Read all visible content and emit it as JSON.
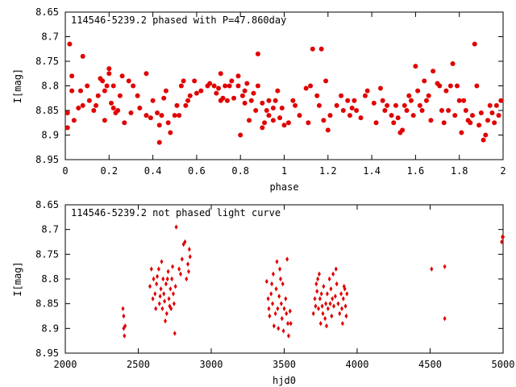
{
  "chart_data": [
    {
      "type": "scatter",
      "title": "114546-5239.2 phased with P=47.860day",
      "xlabel": "phase",
      "ylabel": "I[mag]",
      "xlim": [
        0,
        2
      ],
      "ylim": [
        8.95,
        8.65
      ],
      "y_inverted": true,
      "xticks": [
        "0",
        "0.2",
        "0.4",
        "0.6",
        "0.8",
        "1",
        "1.2",
        "1.4",
        "1.6",
        "1.8",
        "2"
      ],
      "xtick_values": [
        0,
        0.2,
        0.4,
        0.6,
        0.8,
        1.0,
        1.2,
        1.4,
        1.6,
        1.8,
        2.0
      ],
      "yticks": [
        "8.65",
        "8.7",
        "8.75",
        "8.8",
        "8.85",
        "8.9",
        "8.95"
      ],
      "ytick_values": [
        8.65,
        8.7,
        8.75,
        8.8,
        8.85,
        8.9,
        8.95
      ],
      "marker_color": "#e00000",
      "marker": "filled-circle",
      "grid": false,
      "points": [
        [
          0.01,
          8.885
        ],
        [
          0.01,
          8.855
        ],
        [
          0.02,
          8.715
        ],
        [
          0.03,
          8.78
        ],
        [
          0.03,
          8.81
        ],
        [
          0.04,
          8.87
        ],
        [
          0.06,
          8.845
        ],
        [
          0.07,
          8.81
        ],
        [
          0.08,
          8.84
        ],
        [
          0.08,
          8.74
        ],
        [
          0.1,
          8.8
        ],
        [
          0.11,
          8.83
        ],
        [
          0.13,
          8.85
        ],
        [
          0.14,
          8.84
        ],
        [
          0.15,
          8.82
        ],
        [
          0.16,
          8.785
        ],
        [
          0.17,
          8.79
        ],
        [
          0.18,
          8.81
        ],
        [
          0.18,
          8.87
        ],
        [
          0.19,
          8.8
        ],
        [
          0.2,
          8.765
        ],
        [
          0.2,
          8.775
        ],
        [
          0.21,
          8.835
        ],
        [
          0.22,
          8.8
        ],
        [
          0.22,
          8.845
        ],
        [
          0.23,
          8.855
        ],
        [
          0.24,
          8.85
        ],
        [
          0.25,
          8.82
        ],
        [
          0.26,
          8.78
        ],
        [
          0.27,
          8.875
        ],
        [
          0.29,
          8.79
        ],
        [
          0.3,
          8.855
        ],
        [
          0.31,
          8.8
        ],
        [
          0.33,
          8.82
        ],
        [
          0.34,
          8.845
        ],
        [
          0.37,
          8.86
        ],
        [
          0.37,
          8.775
        ],
        [
          0.39,
          8.865
        ],
        [
          0.4,
          8.83
        ],
        [
          0.42,
          8.855
        ],
        [
          0.43,
          8.915
        ],
        [
          0.43,
          8.88
        ],
        [
          0.44,
          8.86
        ],
        [
          0.45,
          8.825
        ],
        [
          0.46,
          8.81
        ],
        [
          0.47,
          8.875
        ],
        [
          0.48,
          8.895
        ],
        [
          0.5,
          8.86
        ],
        [
          0.51,
          8.84
        ],
        [
          0.52,
          8.86
        ],
        [
          0.53,
          8.8
        ],
        [
          0.54,
          8.79
        ],
        [
          0.55,
          8.84
        ],
        [
          0.56,
          8.83
        ],
        [
          0.57,
          8.82
        ],
        [
          0.59,
          8.79
        ],
        [
          0.6,
          8.815
        ],
        [
          0.62,
          8.81
        ],
        [
          0.65,
          8.8
        ],
        [
          0.66,
          8.795
        ],
        [
          0.68,
          8.8
        ],
        [
          0.69,
          8.815
        ],
        [
          0.7,
          8.805
        ],
        [
          0.71,
          8.775
        ],
        [
          0.71,
          8.83
        ],
        [
          0.72,
          8.825
        ],
        [
          0.73,
          8.8
        ],
        [
          0.74,
          8.83
        ],
        [
          0.75,
          8.8
        ],
        [
          0.76,
          8.79
        ],
        [
          0.77,
          8.825
        ],
        [
          0.79,
          8.8
        ],
        [
          0.79,
          8.78
        ],
        [
          0.8,
          8.9
        ],
        [
          0.81,
          8.82
        ],
        [
          0.82,
          8.81
        ],
        [
          0.82,
          8.835
        ],
        [
          0.83,
          8.795
        ],
        [
          0.84,
          8.87
        ],
        [
          0.85,
          8.83
        ],
        [
          0.86,
          8.815
        ],
        [
          0.87,
          8.85
        ],
        [
          0.88,
          8.735
        ],
        [
          0.88,
          8.8
        ],
        [
          0.9,
          8.835
        ],
        [
          0.9,
          8.885
        ],
        [
          0.91,
          8.875
        ],
        [
          0.92,
          8.85
        ],
        [
          0.93,
          8.86
        ],
        [
          0.93,
          8.83
        ],
        [
          0.95,
          8.845
        ],
        [
          0.95,
          8.87
        ],
        [
          0.96,
          8.83
        ],
        [
          0.97,
          8.81
        ],
        [
          0.98,
          8.865
        ],
        [
          0.99,
          8.845
        ],
        [
          1.0,
          8.88
        ],
        [
          1.02,
          8.875
        ],
        [
          1.04,
          8.83
        ],
        [
          1.05,
          8.84
        ],
        [
          1.07,
          8.86
        ],
        [
          1.1,
          8.805
        ],
        [
          1.11,
          8.875
        ],
        [
          1.12,
          8.8
        ],
        [
          1.13,
          8.725
        ],
        [
          1.15,
          8.82
        ],
        [
          1.16,
          8.84
        ],
        [
          1.17,
          8.725
        ],
        [
          1.18,
          8.87
        ],
        [
          1.19,
          8.79
        ],
        [
          1.2,
          8.89
        ],
        [
          1.21,
          8.86
        ],
        [
          1.24,
          8.84
        ],
        [
          1.26,
          8.82
        ],
        [
          1.27,
          8.85
        ],
        [
          1.29,
          8.83
        ],
        [
          1.3,
          8.86
        ],
        [
          1.31,
          8.845
        ],
        [
          1.32,
          8.83
        ],
        [
          1.33,
          8.85
        ],
        [
          1.35,
          8.865
        ],
        [
          1.37,
          8.82
        ],
        [
          1.38,
          8.81
        ],
        [
          1.41,
          8.835
        ],
        [
          1.42,
          8.875
        ],
        [
          1.44,
          8.805
        ],
        [
          1.45,
          8.83
        ],
        [
          1.46,
          8.85
        ],
        [
          1.47,
          8.84
        ],
        [
          1.49,
          8.86
        ],
        [
          1.5,
          8.875
        ],
        [
          1.51,
          8.84
        ],
        [
          1.52,
          8.865
        ],
        [
          1.53,
          8.895
        ],
        [
          1.54,
          8.89
        ],
        [
          1.55,
          8.84
        ],
        [
          1.56,
          8.85
        ],
        [
          1.57,
          8.82
        ],
        [
          1.58,
          8.83
        ],
        [
          1.59,
          8.86
        ],
        [
          1.6,
          8.76
        ],
        [
          1.61,
          8.81
        ],
        [
          1.62,
          8.84
        ],
        [
          1.63,
          8.85
        ],
        [
          1.64,
          8.79
        ],
        [
          1.65,
          8.83
        ],
        [
          1.66,
          8.82
        ],
        [
          1.67,
          8.87
        ],
        [
          1.68,
          8.77
        ],
        [
          1.7,
          8.795
        ],
        [
          1.71,
          8.8
        ],
        [
          1.72,
          8.85
        ],
        [
          1.73,
          8.875
        ],
        [
          1.74,
          8.81
        ],
        [
          1.75,
          8.85
        ],
        [
          1.76,
          8.8
        ],
        [
          1.77,
          8.755
        ],
        [
          1.78,
          8.86
        ],
        [
          1.79,
          8.8
        ],
        [
          1.8,
          8.83
        ],
        [
          1.81,
          8.895
        ],
        [
          1.82,
          8.83
        ],
        [
          1.83,
          8.85
        ],
        [
          1.84,
          8.87
        ],
        [
          1.85,
          8.875
        ],
        [
          1.86,
          8.86
        ],
        [
          1.87,
          8.715
        ],
        [
          1.88,
          8.8
        ],
        [
          1.89,
          8.88
        ],
        [
          1.9,
          8.855
        ],
        [
          1.91,
          8.91
        ],
        [
          1.92,
          8.9
        ],
        [
          1.93,
          8.87
        ],
        [
          1.94,
          8.84
        ],
        [
          1.95,
          8.855
        ],
        [
          1.96,
          8.875
        ],
        [
          1.97,
          8.84
        ],
        [
          1.98,
          8.86
        ],
        [
          1.99,
          8.83
        ]
      ]
    },
    {
      "type": "scatter",
      "title": "114546-5239.2 not phased light curve",
      "xlabel": "hjd0",
      "ylabel": "I[mag]",
      "xlim": [
        2000,
        5000
      ],
      "ylim": [
        8.95,
        8.65
      ],
      "y_inverted": true,
      "xticks": [
        "2000",
        "2500",
        "3000",
        "3500",
        "4000",
        "4500",
        "5000"
      ],
      "xtick_values": [
        2000,
        2500,
        3000,
        3500,
        4000,
        4500,
        5000
      ],
      "yticks": [
        "8.65",
        "8.7",
        "8.75",
        "8.8",
        "8.85",
        "8.9",
        "8.95"
      ],
      "ytick_values": [
        8.65,
        8.7,
        8.75,
        8.8,
        8.85,
        8.9,
        8.95
      ],
      "marker_color": "#e00000",
      "marker": "filled-diamond",
      "grid": false,
      "points": [
        [
          2395,
          8.86
        ],
        [
          2400,
          8.875
        ],
        [
          2400,
          8.9
        ],
        [
          2405,
          8.915
        ],
        [
          2410,
          8.895
        ],
        [
          2580,
          8.815
        ],
        [
          2590,
          8.78
        ],
        [
          2600,
          8.84
        ],
        [
          2605,
          8.8
        ],
        [
          2615,
          8.83
        ],
        [
          2620,
          8.86
        ],
        [
          2625,
          8.81
        ],
        [
          2630,
          8.795
        ],
        [
          2640,
          8.78
        ],
        [
          2645,
          8.85
        ],
        [
          2650,
          8.835
        ],
        [
          2655,
          8.82
        ],
        [
          2660,
          8.765
        ],
        [
          2665,
          8.86
        ],
        [
          2670,
          8.8
        ],
        [
          2675,
          8.83
        ],
        [
          2680,
          8.845
        ],
        [
          2685,
          8.885
        ],
        [
          2690,
          8.81
        ],
        [
          2695,
          8.87
        ],
        [
          2700,
          8.8
        ],
        [
          2705,
          8.785
        ],
        [
          2710,
          8.84
        ],
        [
          2715,
          8.855
        ],
        [
          2720,
          8.82
        ],
        [
          2725,
          8.86
        ],
        [
          2730,
          8.8
        ],
        [
          2735,
          8.775
        ],
        [
          2740,
          8.83
        ],
        [
          2745,
          8.85
        ],
        [
          2750,
          8.91
        ],
        [
          2755,
          8.815
        ],
        [
          2760,
          8.695
        ],
        [
          2780,
          8.78
        ],
        [
          2790,
          8.79
        ],
        [
          2800,
          8.76
        ],
        [
          2810,
          8.73
        ],
        [
          2820,
          8.725
        ],
        [
          2830,
          8.8
        ],
        [
          2840,
          8.77
        ],
        [
          2845,
          8.785
        ],
        [
          2850,
          8.74
        ],
        [
          2855,
          8.755
        ],
        [
          3380,
          8.805
        ],
        [
          3390,
          8.84
        ],
        [
          3395,
          8.86
        ],
        [
          3400,
          8.875
        ],
        [
          3410,
          8.83
        ],
        [
          3415,
          8.81
        ],
        [
          3420,
          8.85
        ],
        [
          3425,
          8.79
        ],
        [
          3430,
          8.895
        ],
        [
          3440,
          8.87
        ],
        [
          3445,
          8.82
        ],
        [
          3450,
          8.765
        ],
        [
          3455,
          8.86
        ],
        [
          3460,
          8.9
        ],
        [
          3465,
          8.835
        ],
        [
          3470,
          8.78
        ],
        [
          3475,
          8.8
        ],
        [
          3480,
          8.85
        ],
        [
          3485,
          8.88
        ],
        [
          3490,
          8.81
        ],
        [
          3495,
          8.905
        ],
        [
          3500,
          8.86
        ],
        [
          3510,
          8.84
        ],
        [
          3515,
          8.87
        ],
        [
          3520,
          8.76
        ],
        [
          3525,
          8.89
        ],
        [
          3530,
          8.915
        ],
        [
          3540,
          8.865
        ],
        [
          3545,
          8.89
        ],
        [
          3700,
          8.87
        ],
        [
          3710,
          8.84
        ],
        [
          3715,
          8.855
        ],
        [
          3720,
          8.81
        ],
        [
          3725,
          8.825
        ],
        [
          3730,
          8.8
        ],
        [
          3735,
          8.86
        ],
        [
          3740,
          8.79
        ],
        [
          3745,
          8.84
        ],
        [
          3750,
          8.89
        ],
        [
          3755,
          8.83
        ],
        [
          3760,
          8.855
        ],
        [
          3765,
          8.87
        ],
        [
          3770,
          8.815
        ],
        [
          3780,
          8.88
        ],
        [
          3785,
          8.85
        ],
        [
          3790,
          8.895
        ],
        [
          3795,
          8.83
        ],
        [
          3800,
          8.86
        ],
        [
          3810,
          8.8
        ],
        [
          3815,
          8.85
        ],
        [
          3820,
          8.82
        ],
        [
          3825,
          8.875
        ],
        [
          3830,
          8.84
        ],
        [
          3835,
          8.79
        ],
        [
          3840,
          8.855
        ],
        [
          3850,
          8.835
        ],
        [
          3855,
          8.78
        ],
        [
          3860,
          8.81
        ],
        [
          3870,
          8.85
        ],
        [
          3880,
          8.87
        ],
        [
          3890,
          8.83
        ],
        [
          3895,
          8.86
        ],
        [
          3900,
          8.89
        ],
        [
          3905,
          8.84
        ],
        [
          3910,
          8.815
        ],
        [
          3915,
          8.82
        ],
        [
          3920,
          8.855
        ],
        [
          3925,
          8.875
        ],
        [
          3930,
          8.83
        ],
        [
          4510,
          8.78
        ],
        [
          4600,
          8.775
        ],
        [
          4600,
          8.88
        ],
        [
          4990,
          8.725
        ],
        [
          4995,
          8.715
        ],
        [
          5000,
          8.715
        ]
      ]
    }
  ]
}
